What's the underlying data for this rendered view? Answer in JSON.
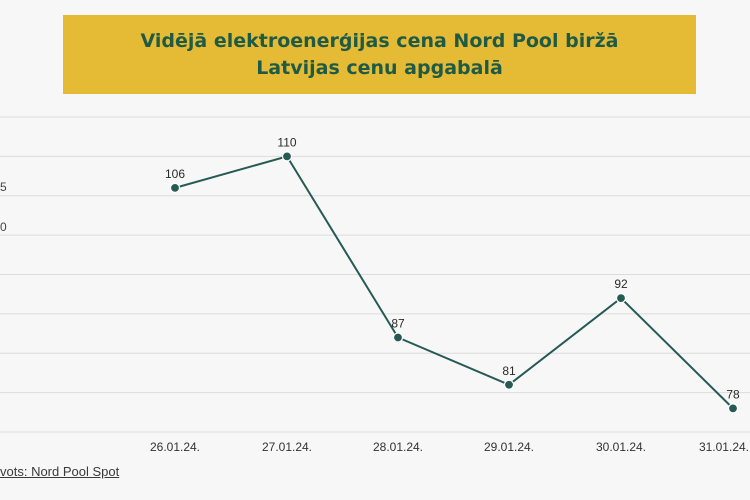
{
  "chart_data": {
    "type": "line",
    "title": [
      "Vidējā elektroenerģijas cena Nord Pool biržā",
      "Latvijas cenu apgabalā"
    ],
    "categories": [
      "26.01.24.",
      "27.01.24.",
      "28.01.24.",
      "29.01.24.",
      "30.01.24.",
      "31.01.24."
    ],
    "series": [
      {
        "values": [
          106,
          110,
          87,
          81,
          92,
          78
        ]
      }
    ],
    "data_labels": [
      "106",
      "110",
      "87",
      "81",
      "92",
      "78"
    ],
    "ylim": [
      75,
      115
    ],
    "grid": true,
    "partial_axis_text": [
      "5",
      "0"
    ],
    "colors": {
      "line": "#265a55",
      "title_bg": "#e5bb35",
      "title_text": "#1f5a45",
      "grid": "#dcdcdc",
      "background": "#f7f7f7"
    }
  },
  "source_text": "vots:  Nord Pool Spot"
}
